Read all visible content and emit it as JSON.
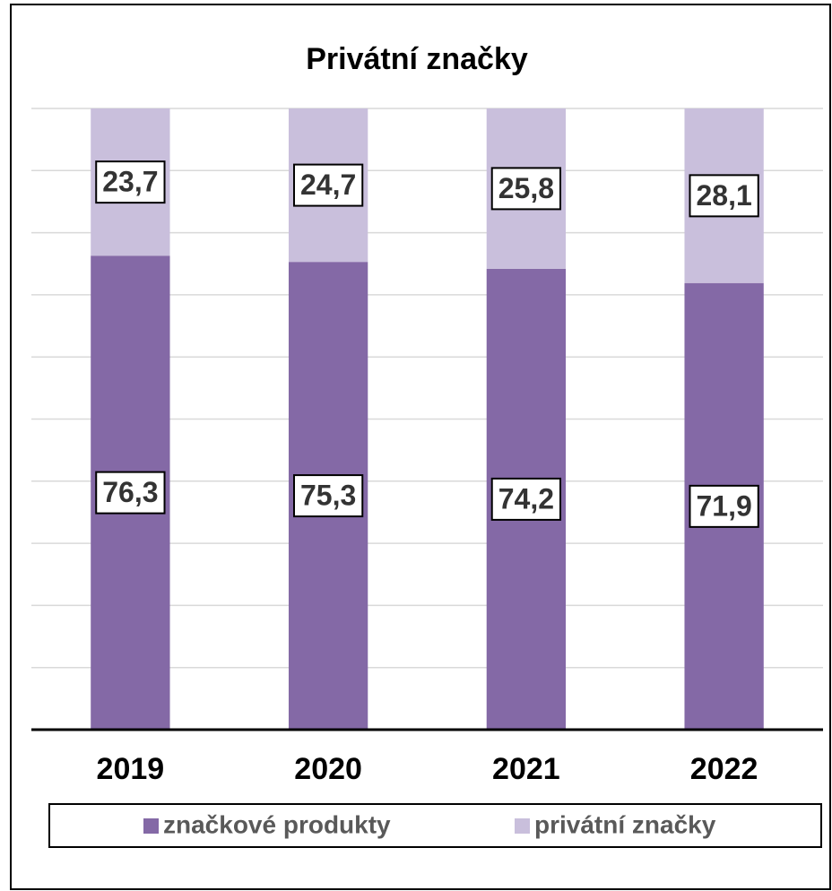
{
  "chart_data": {
    "type": "stacked_bar",
    "title": "Privátní značky",
    "categories": [
      "2019",
      "2020",
      "2021",
      "2022"
    ],
    "series": [
      {
        "name": "značkové produkty",
        "color": "#8469a6",
        "values": [
          76.3,
          75.3,
          74.2,
          71.9
        ],
        "value_labels": [
          "76,3",
          "75,3",
          "74,2",
          "71,9"
        ]
      },
      {
        "name": "privátní značky",
        "color": "#c9bfdc",
        "values": [
          23.7,
          24.7,
          25.8,
          28.1
        ],
        "value_labels": [
          "23,7",
          "24,7",
          "25,8",
          "28,1"
        ]
      }
    ],
    "ylim": [
      0,
      100
    ],
    "yticks": [
      0,
      10,
      20,
      30,
      40,
      50,
      60,
      70,
      80,
      90,
      100
    ],
    "grid": true,
    "legend": "bottom"
  }
}
